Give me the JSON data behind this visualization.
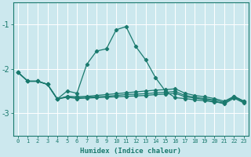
{
  "xlabel": "Humidex (Indice chaleur)",
  "xlim": [
    -0.5,
    23.5
  ],
  "ylim": [
    -3.5,
    -0.5
  ],
  "yticks": [
    -3,
    -2,
    -1
  ],
  "xticks": [
    0,
    1,
    2,
    3,
    4,
    5,
    6,
    7,
    8,
    9,
    10,
    11,
    12,
    13,
    14,
    15,
    16,
    17,
    18,
    19,
    20,
    21,
    22,
    23
  ],
  "bg_color": "#cce8ee",
  "line_color": "#1a7a6e",
  "grid_color": "#ffffff",
  "lines": [
    {
      "x": [
        0,
        1,
        2,
        3,
        4,
        5,
        6,
        7,
        8,
        9,
        10,
        11,
        12,
        13,
        14,
        15,
        16,
        17,
        18,
        19,
        20,
        21,
        22,
        23
      ],
      "y": [
        -2.08,
        -2.28,
        -2.28,
        -2.35,
        -2.68,
        -2.5,
        -2.55,
        -1.9,
        -1.6,
        -1.55,
        -1.12,
        -1.05,
        -1.5,
        -1.8,
        -2.2,
        -2.5,
        -2.65,
        -2.67,
        -2.7,
        -2.72,
        -2.75,
        -2.77,
        -2.62,
        -2.73
      ]
    },
    {
      "x": [
        0,
        1,
        2,
        3,
        4,
        5,
        6,
        7,
        8,
        9,
        10,
        11,
        12,
        13,
        14,
        15,
        16,
        17,
        18,
        19,
        20,
        21,
        22,
        23
      ],
      "y": [
        -2.08,
        -2.28,
        -2.28,
        -2.35,
        -2.68,
        -2.62,
        -2.63,
        -2.62,
        -2.6,
        -2.58,
        -2.56,
        -2.54,
        -2.52,
        -2.5,
        -2.48,
        -2.47,
        -2.45,
        -2.55,
        -2.6,
        -2.63,
        -2.67,
        -2.73,
        -2.62,
        -2.73
      ]
    },
    {
      "x": [
        0,
        1,
        2,
        3,
        4,
        5,
        6,
        7,
        8,
        9,
        10,
        11,
        12,
        13,
        14,
        15,
        16,
        17,
        18,
        19,
        20,
        21,
        22,
        23
      ],
      "y": [
        -2.08,
        -2.28,
        -2.28,
        -2.35,
        -2.68,
        -2.63,
        -2.65,
        -2.64,
        -2.63,
        -2.62,
        -2.6,
        -2.58,
        -2.57,
        -2.56,
        -2.54,
        -2.53,
        -2.51,
        -2.6,
        -2.64,
        -2.67,
        -2.7,
        -2.76,
        -2.64,
        -2.75
      ]
    },
    {
      "x": [
        0,
        1,
        2,
        3,
        4,
        5,
        6,
        7,
        8,
        9,
        10,
        11,
        12,
        13,
        14,
        15,
        16,
        17,
        18,
        19,
        20,
        21,
        22,
        23
      ],
      "y": [
        -2.08,
        -2.28,
        -2.28,
        -2.35,
        -2.68,
        -2.64,
        -2.67,
        -2.66,
        -2.65,
        -2.64,
        -2.63,
        -2.62,
        -2.61,
        -2.6,
        -2.58,
        -2.57,
        -2.55,
        -2.63,
        -2.66,
        -2.69,
        -2.73,
        -2.79,
        -2.66,
        -2.77
      ]
    }
  ],
  "marker": "D",
  "markersize": 2.2,
  "linewidth": 0.9,
  "xlabel_fontsize": 6.5,
  "xlabel_fontweight": "bold",
  "ytick_fontsize": 7,
  "xtick_fontsize": 5
}
